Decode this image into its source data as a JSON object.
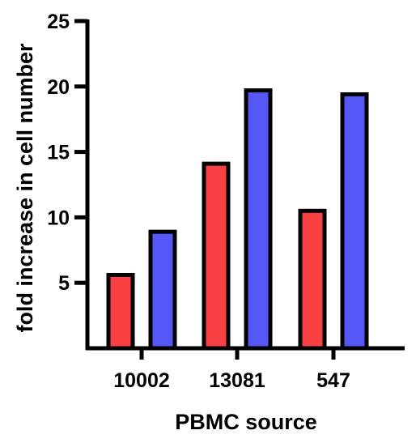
{
  "chart_data": {
    "type": "bar",
    "categories": [
      "10002",
      "13081",
      "547"
    ],
    "series": [
      {
        "color": "#f94144",
        "values": [
          5.6,
          14.1,
          10.5
        ]
      },
      {
        "color": "#5558f6",
        "values": [
          8.9,
          19.7,
          19.4
        ]
      }
    ],
    "xlabel": "PBMC source",
    "ylabel": "fold increase in cell number",
    "ylim": [
      0,
      25
    ],
    "yticks": [
      "5",
      "10",
      "15",
      "20",
      "25"
    ],
    "grid": false
  }
}
